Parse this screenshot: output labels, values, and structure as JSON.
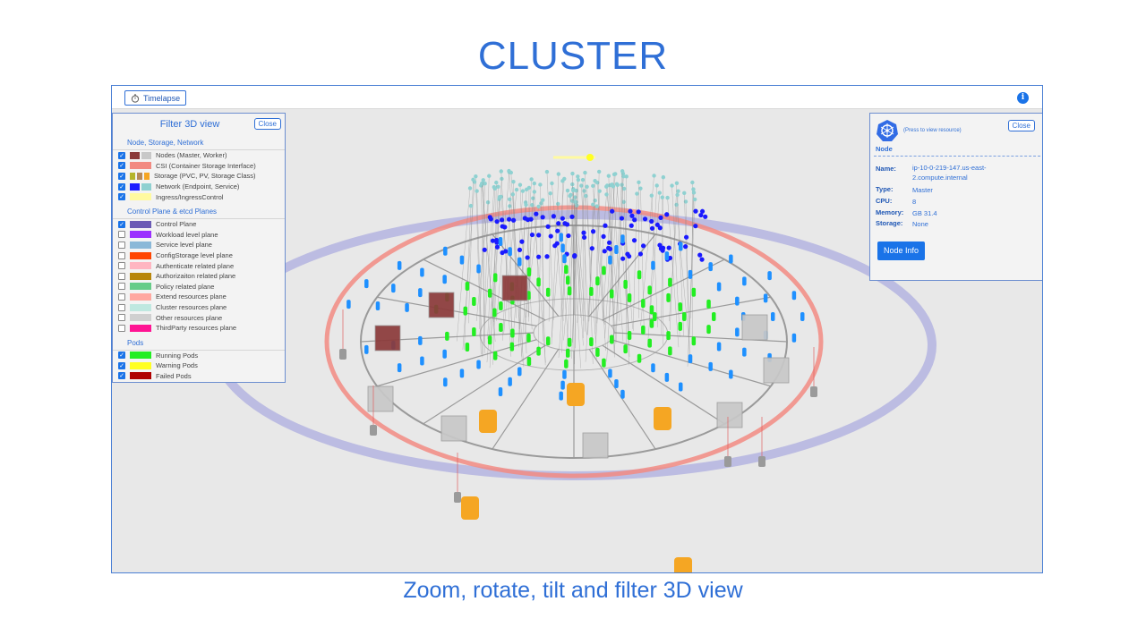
{
  "slide": {
    "title": "CLUSTER",
    "caption": "Zoom, rotate, tilt and filter 3D view"
  },
  "toolbar": {
    "timelapse_label": "Timelapse",
    "timelapse_icon": "stopwatch-icon",
    "info_icon": "info-icon"
  },
  "filter": {
    "title": "Filter 3D view",
    "close_label": "Close",
    "sections": [
      {
        "heading": "Node, Storage, Network",
        "items": [
          {
            "label": "Nodes (Master, Worker)",
            "checked": true,
            "colors": [
              "#8b3a3a",
              "#c8c8c8"
            ]
          },
          {
            "label": "CSI (Container Storage Interface)",
            "checked": true,
            "colors": [
              "#f28b82"
            ]
          },
          {
            "label": "Storage (PVC, PV, Storage Class)",
            "checked": true,
            "colors": [
              "#b5b52a",
              "#b58a5a",
              "#f5a623"
            ]
          },
          {
            "label": "Network (Endpoint, Service)",
            "checked": true,
            "colors": [
              "#1a1aff",
              "#8fd1d1"
            ]
          },
          {
            "label": "Ingress/IngressControl",
            "checked": true,
            "colors": [
              "#fffaa0"
            ]
          }
        ]
      },
      {
        "heading": "Control Plane & etcd Planes",
        "items": [
          {
            "label": "Control Plane",
            "checked": true,
            "colors": [
              "#6b5bb5"
            ]
          },
          {
            "label": "Workload level plane",
            "checked": false,
            "colors": [
              "#9b30ff"
            ]
          },
          {
            "label": "Service level plane",
            "checked": false,
            "colors": [
              "#8ab8d8"
            ]
          },
          {
            "label": "ConfigStorage level plane",
            "checked": false,
            "colors": [
              "#ff4500"
            ]
          },
          {
            "label": "Authenticate related plane",
            "checked": false,
            "colors": [
              "#ffb6c1"
            ]
          },
          {
            "label": "Authorizaiton related plane",
            "checked": false,
            "colors": [
              "#b8860b"
            ]
          },
          {
            "label": "Policy related plane",
            "checked": false,
            "colors": [
              "#66cc88"
            ]
          },
          {
            "label": "Extend resources plane",
            "checked": false,
            "colors": [
              "#ffa8a0"
            ]
          },
          {
            "label": "Cluster resources plane",
            "checked": false,
            "colors": [
              "#bfe8e0"
            ]
          },
          {
            "label": "Other resources plane",
            "checked": false,
            "colors": [
              "#d0d0d0"
            ]
          },
          {
            "label": "ThirdParty resources plane",
            "checked": false,
            "colors": [
              "#ff1493"
            ]
          }
        ]
      },
      {
        "heading": "Pods",
        "items": [
          {
            "label": "Running Pods",
            "checked": true,
            "colors": [
              "#22ee22"
            ]
          },
          {
            "label": "Warning Pods",
            "checked": true,
            "colors": [
              "#ffff22"
            ]
          },
          {
            "label": "Failed Pods",
            "checked": true,
            "colors": [
              "#b00000"
            ]
          },
          {
            "label": "",
            "checked": true,
            "colors": [
              "#1e90ff"
            ]
          }
        ]
      }
    ]
  },
  "node": {
    "press_note": "(Press to view resource)",
    "label": "Node",
    "close_label": "Close",
    "name_key": "Name:",
    "name_value": "ip-10-0-219-147.us-east-2.compute.internal",
    "type_key": "Type:",
    "type_value": "Master",
    "cpu_key": "CPU:",
    "cpu_value": "8",
    "memory_key": "Memory:",
    "memory_value": "GB 31.4",
    "storage_key": "Storage:",
    "storage_value": "None",
    "info_button": "Node Info",
    "logo_icon": "kubernetes-logo-icon"
  },
  "colors": {
    "accent": "#2f6fd6",
    "button": "#1a73e8",
    "running": "#22ee22",
    "warning": "#ffff22",
    "failed": "#b00000",
    "service": "#1e90ff",
    "endpoint": "#1a1aff",
    "storage": "#f5a623",
    "node_master": "#8b3a3a",
    "node_worker": "#c8c8c8",
    "control_plane_ring": "#b0b0e0",
    "csi_ring": "#f28b82"
  }
}
